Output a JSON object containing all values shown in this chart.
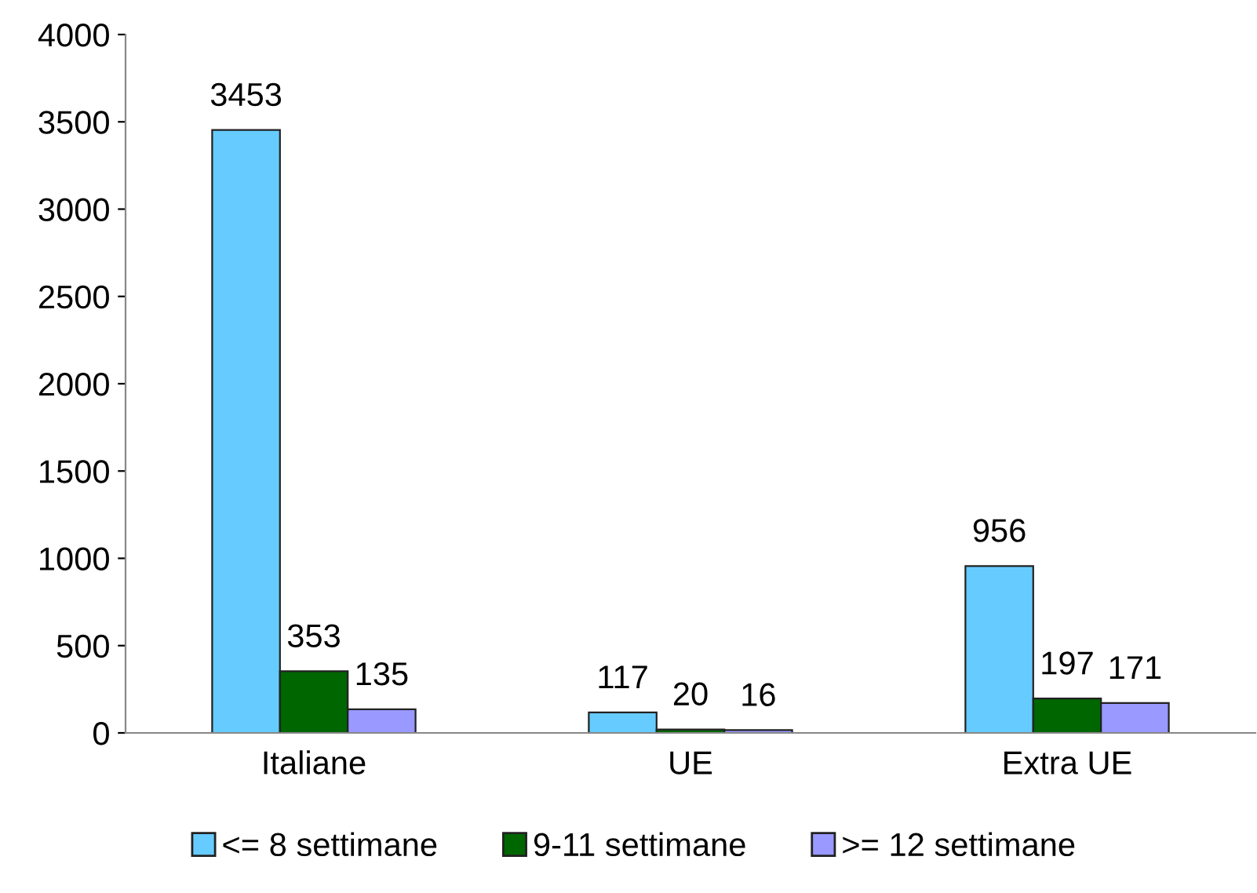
{
  "chart_data": {
    "type": "bar",
    "categories": [
      "Italiane",
      "UE",
      "Extra UE"
    ],
    "series": [
      {
        "name": "<= 8 settimane",
        "color": "#66ccff",
        "values": [
          3453,
          117,
          956
        ]
      },
      {
        "name": "9-11 settimane",
        "color": "#006600",
        "values": [
          353,
          20,
          197
        ]
      },
      {
        "name": ">= 12 settimane",
        "color": "#9999ff",
        "values": [
          135,
          16,
          171
        ]
      }
    ],
    "ylim": [
      0,
      4000
    ],
    "yticks": [
      0,
      500,
      1000,
      1500,
      2000,
      2500,
      3000,
      3500,
      4000
    ],
    "grid": false,
    "legend": "bottom",
    "data_labels": true
  }
}
